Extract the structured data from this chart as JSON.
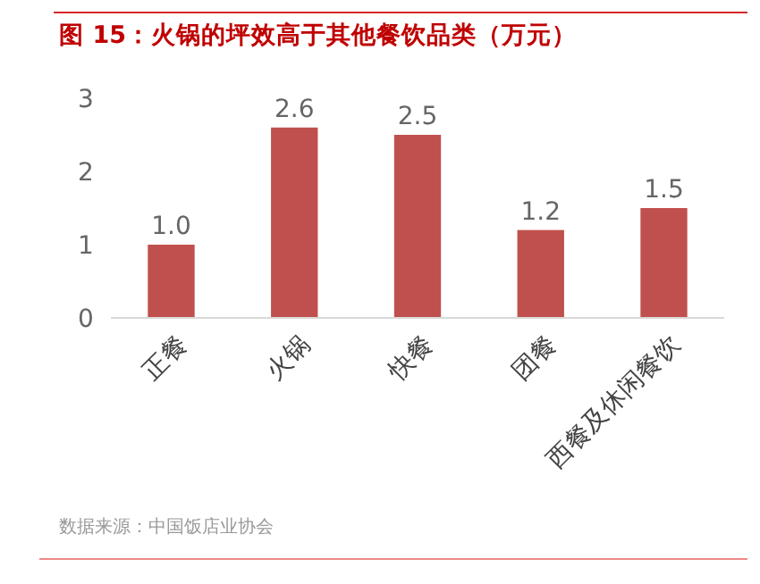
{
  "chart_data": {
    "type": "bar",
    "title": "图 15：火锅的坪效高于其他餐饮品类（万元）",
    "categories": [
      "正餐",
      "火锅",
      "快餐",
      "团餐",
      "西餐及休闲餐饮"
    ],
    "values": [
      1.0,
      2.6,
      2.5,
      1.2,
      1.5
    ],
    "value_labels": [
      "1.0",
      "2.6",
      "2.5",
      "1.2",
      "1.5"
    ],
    "color": "#c0504d",
    "ylim": [
      0,
      3
    ],
    "yticks": [
      0,
      1,
      2,
      3
    ],
    "grid": false,
    "annotations": [
      "数据来源：中国饭店业协会"
    ]
  }
}
